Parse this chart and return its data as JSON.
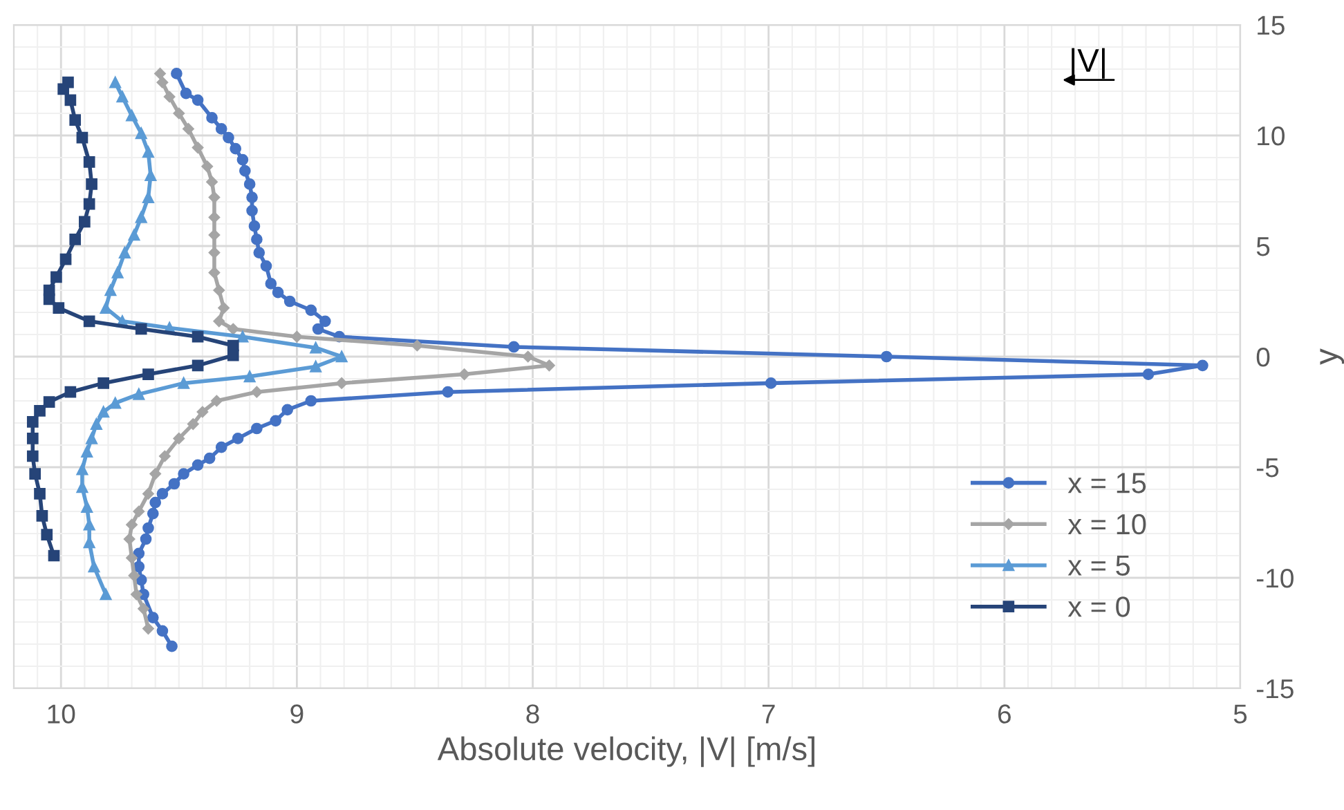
{
  "chart_data": {
    "type": "line",
    "xlabel": "Absolute velocity, |V| [m/s]",
    "ylabel": "y",
    "xlim": [
      10.2,
      5
    ],
    "xticks": [
      10,
      9,
      8,
      7,
      6,
      5
    ],
    "ylim": [
      -15,
      15
    ],
    "yticks": [
      15,
      10,
      5,
      0,
      -5,
      -10,
      -15
    ],
    "grid": true,
    "legend": "bottom right",
    "line_style": "solid",
    "annotations": [
      "|V|"
    ],
    "series": [
      {
        "name": "x = 15",
        "color": "#4472c4",
        "marker": "circle",
        "x": [
          9.51,
          9.47,
          9.42,
          9.36,
          9.32,
          9.29,
          9.26,
          9.23,
          9.22,
          9.2,
          9.19,
          9.19,
          9.18,
          9.17,
          9.16,
          9.13,
          9.11,
          9.08,
          9.03,
          8.94,
          8.88,
          8.91,
          8.82,
          8.08,
          6.5,
          5.16,
          5.39,
          6.99,
          8.36,
          8.94,
          9.04,
          9.09,
          9.17,
          9.25,
          9.32,
          9.37,
          9.42,
          9.48,
          9.52,
          9.57,
          9.6,
          9.61,
          9.63,
          9.64,
          9.67,
          9.67,
          9.66,
          9.65,
          9.61,
          9.57,
          9.53
        ],
        "values": [
          12.8,
          11.9,
          11.6,
          10.8,
          10.3,
          9.9,
          9.4,
          8.9,
          8.4,
          7.8,
          7.2,
          6.6,
          5.9,
          5.3,
          4.7,
          4.1,
          3.3,
          2.9,
          2.5,
          2.1,
          1.6,
          1.25,
          0.9,
          0.44,
          0.0,
          -0.4,
          -0.8,
          -1.2,
          -1.6,
          -2.0,
          -2.4,
          -2.9,
          -3.25,
          -3.7,
          -4.1,
          -4.6,
          -4.9,
          -5.3,
          -5.75,
          -6.2,
          -6.6,
          -7.1,
          -7.75,
          -8.25,
          -8.9,
          -9.5,
          -10.1,
          -10.75,
          -11.8,
          -12.4,
          -13.1
        ]
      },
      {
        "name": "x = 10",
        "color": "#a5a5a5",
        "marker": "diamond",
        "x": [
          9.58,
          9.57,
          9.54,
          9.5,
          9.46,
          9.42,
          9.38,
          9.36,
          9.35,
          9.35,
          9.35,
          9.35,
          9.35,
          9.33,
          9.31,
          9.33,
          9.27,
          9.0,
          8.49,
          8.02,
          7.93,
          8.29,
          8.81,
          9.17,
          9.34,
          9.4,
          9.44,
          9.5,
          9.56,
          9.6,
          9.63,
          9.67,
          9.7,
          9.71,
          9.7,
          9.69,
          9.68,
          9.65,
          9.63
        ],
        "values": [
          12.8,
          12.4,
          11.75,
          11.0,
          10.3,
          9.45,
          8.6,
          7.9,
          7.2,
          6.3,
          5.5,
          4.7,
          3.8,
          3.0,
          2.2,
          1.6,
          1.25,
          0.9,
          0.5,
          0.0,
          -0.4,
          -0.8,
          -1.2,
          -1.6,
          -2.0,
          -2.5,
          -3.05,
          -3.7,
          -4.5,
          -5.3,
          -6.2,
          -7.0,
          -7.6,
          -8.25,
          -9.1,
          -9.9,
          -10.75,
          -11.4,
          -12.3
        ]
      },
      {
        "name": "x = 5",
        "color": "#5b9bd5",
        "marker": "triangle",
        "x": [
          9.77,
          9.74,
          9.7,
          9.66,
          9.63,
          9.62,
          9.63,
          9.66,
          9.69,
          9.73,
          9.76,
          9.79,
          9.81,
          9.74,
          9.54,
          9.23,
          8.92,
          8.81,
          8.92,
          9.2,
          9.48,
          9.67,
          9.77,
          9.82,
          9.85,
          9.87,
          9.89,
          9.91,
          9.91,
          9.89,
          9.88,
          9.88,
          9.86,
          9.81
        ],
        "values": [
          12.4,
          11.75,
          10.9,
          10.1,
          9.25,
          8.2,
          7.2,
          6.3,
          5.5,
          4.7,
          3.8,
          3.0,
          2.2,
          1.6,
          1.3,
          0.9,
          0.4,
          0.0,
          -0.45,
          -0.9,
          -1.2,
          -1.7,
          -2.1,
          -2.5,
          -3.05,
          -3.7,
          -4.3,
          -5.1,
          -5.9,
          -6.8,
          -7.6,
          -8.4,
          -9.5,
          -10.75
        ]
      },
      {
        "name": "x = 0",
        "color": "#264478",
        "marker": "square",
        "x": [
          9.97,
          9.99,
          9.96,
          9.94,
          9.91,
          9.88,
          9.87,
          9.88,
          9.9,
          9.94,
          9.98,
          10.02,
          10.05,
          10.05,
          10.01,
          9.88,
          9.66,
          9.42,
          9.27,
          9.27,
          9.42,
          9.63,
          9.82,
          9.96,
          10.05,
          10.09,
          10.12,
          10.12,
          10.12,
          10.11,
          10.09,
          10.08,
          10.06,
          10.03
        ],
        "values": [
          12.4,
          12.1,
          11.6,
          10.7,
          9.9,
          8.8,
          7.8,
          6.9,
          6.1,
          5.3,
          4.4,
          3.6,
          3.0,
          2.6,
          2.2,
          1.6,
          1.25,
          0.9,
          0.5,
          0.06,
          -0.4,
          -0.8,
          -1.2,
          -1.6,
          -2.05,
          -2.45,
          -2.95,
          -3.7,
          -4.5,
          -5.3,
          -6.2,
          -7.2,
          -8.05,
          -9.0
        ]
      }
    ]
  }
}
